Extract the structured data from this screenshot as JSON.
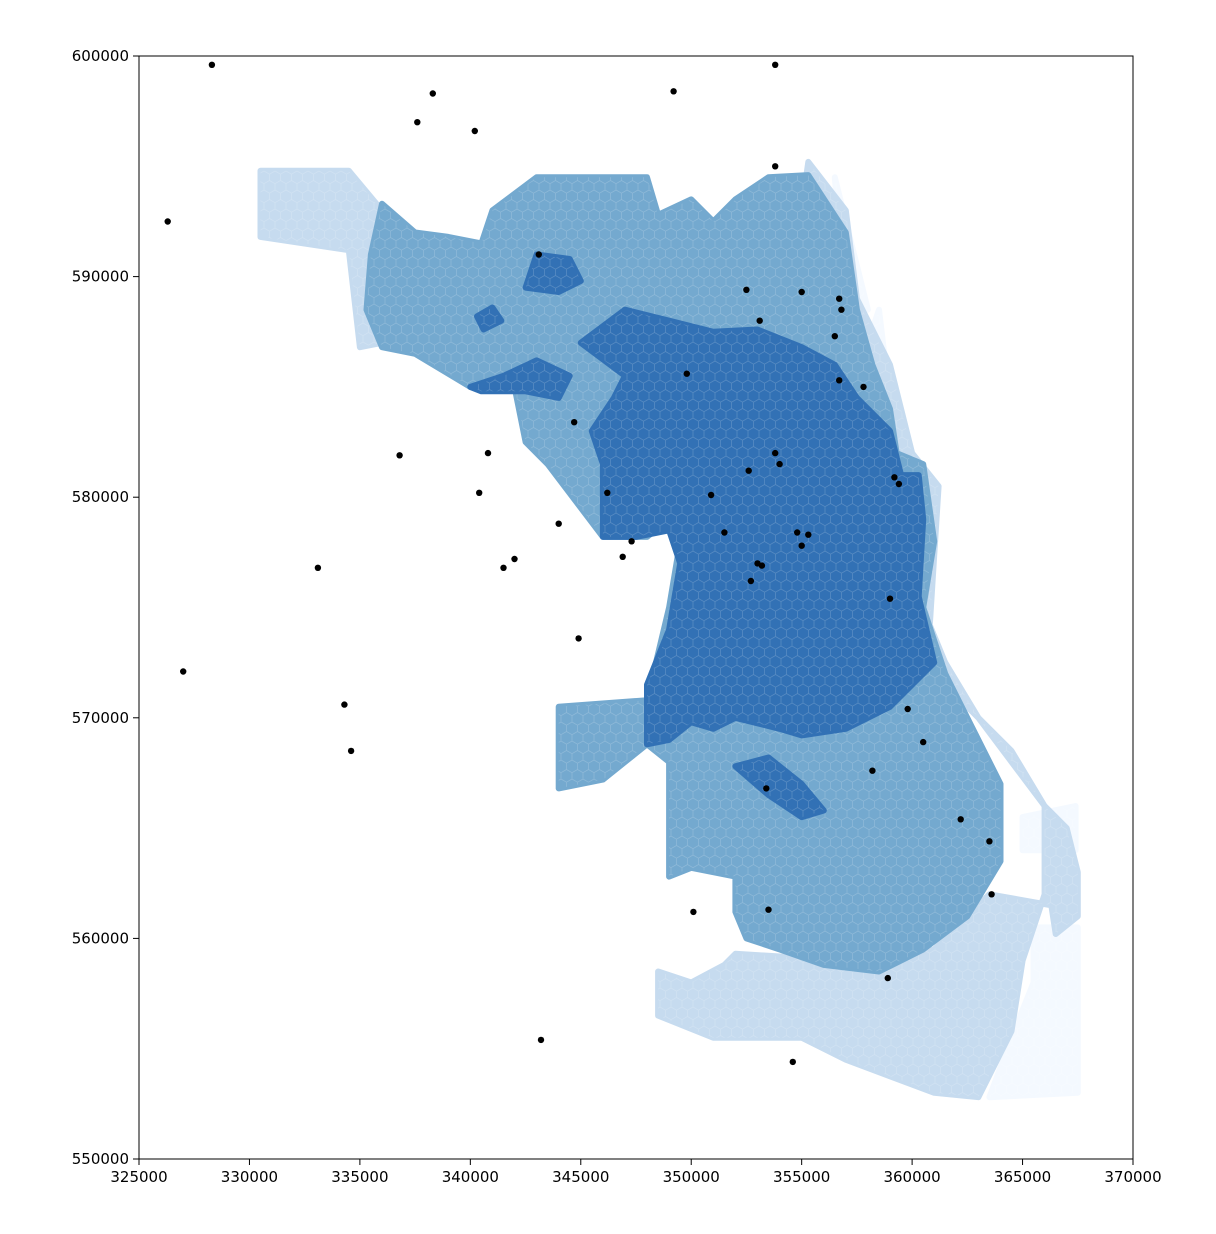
{
  "chart_data": {
    "type": "scatter",
    "title": "",
    "xlabel": "",
    "ylabel": "",
    "xlim": [
      325000,
      370000
    ],
    "ylim": [
      550000,
      600000
    ],
    "x_ticks": [
      "325000",
      "330000",
      "335000",
      "340000",
      "345000",
      "350000",
      "355000",
      "360000",
      "365000",
      "370000"
    ],
    "y_ticks": [
      "550000",
      "560000",
      "570000",
      "580000",
      "590000",
      "600000"
    ],
    "grid": false,
    "background_layer": {
      "kind": "hexbin choropleth",
      "colormap": "Blues",
      "class_colors": [
        "#f4f9ff",
        "#c6dbef",
        "#74a9cf",
        "#3271b5",
        "#0d2f6b"
      ],
      "regions": [
        {
          "class": 1,
          "points": [
            [
              358500,
              588500
            ],
            [
              358800,
              586000
            ],
            [
              359500,
              584000
            ],
            [
              360000,
              582000
            ],
            [
              361000,
              580000
            ],
            [
              360500,
              579500
            ],
            [
              359000,
              584000
            ],
            [
              358000,
              587000
            ]
          ]
        },
        {
          "class": 1,
          "points": [
            [
              365500,
              560500
            ],
            [
              367500,
              560500
            ],
            [
              367500,
              553000
            ],
            [
              363500,
              552800
            ],
            [
              364500,
              555500
            ],
            [
              365500,
              558000
            ]
          ]
        },
        {
          "class": 1,
          "points": [
            [
              365000,
              565500
            ],
            [
              367400,
              566000
            ],
            [
              367400,
              564000
            ],
            [
              365000,
              564000
            ]
          ]
        },
        {
          "class": 1,
          "points": [
            [
              356500,
              594500
            ],
            [
              358000,
              588500
            ],
            [
              357000,
              588500
            ]
          ]
        },
        {
          "class": 2,
          "points": [
            [
              330500,
              594800
            ],
            [
              334500,
              594800
            ],
            [
              336000,
              593000
            ],
            [
              336000,
              587000
            ],
            [
              335000,
              586800
            ],
            [
              334500,
              591200
            ],
            [
              330500,
              591800
            ]
          ]
        },
        {
          "class": 2,
          "points": [
            [
              355300,
              595200
            ],
            [
              357000,
              593000
            ],
            [
              357500,
              589000
            ],
            [
              359000,
              586000
            ],
            [
              360000,
              582000
            ],
            [
              361200,
              580500
            ],
            [
              360800,
              574200
            ],
            [
              361500,
              572500
            ],
            [
              363000,
              570000
            ],
            [
              364500,
              568000
            ],
            [
              366000,
              566000
            ],
            [
              367000,
              565000
            ],
            [
              367500,
              563000
            ],
            [
              367500,
              561000
            ],
            [
              366500,
              560200
            ],
            [
              366300,
              561500
            ],
            [
              363500,
              562000
            ],
            [
              361000,
              559500
            ],
            [
              357000,
              559000
            ],
            [
              352000,
              559300
            ],
            [
              351500,
              558800
            ],
            [
              350000,
              558000
            ],
            [
              348500,
              558500
            ],
            [
              348500,
              556500
            ],
            [
              351000,
              555500
            ],
            [
              353000,
              555500
            ],
            [
              355000,
              555500
            ],
            [
              357000,
              554500
            ],
            [
              361000,
              553000
            ],
            [
              363000,
              552800
            ],
            [
              364500,
              555800
            ],
            [
              365000,
              559000
            ],
            [
              366000,
              562000
            ],
            [
              366000,
              566000
            ],
            [
              364500,
              568500
            ],
            [
              362500,
              570500
            ],
            [
              361000,
              572500
            ],
            [
              360000,
              578000
            ],
            [
              359000,
              582500
            ],
            [
              358000,
              586000
            ],
            [
              357000,
              589500
            ],
            [
              356000,
              593000
            ],
            [
              355200,
              594500
            ]
          ]
        },
        {
          "class": 3,
          "points": [
            [
              336000,
              593300
            ],
            [
              337500,
              592000
            ],
            [
              339000,
              591800
            ],
            [
              340500,
              591500
            ],
            [
              341000,
              593000
            ],
            [
              343000,
              594500
            ],
            [
              348000,
              594500
            ],
            [
              348500,
              592800
            ],
            [
              350000,
              593500
            ],
            [
              351000,
              592500
            ],
            [
              352000,
              593500
            ],
            [
              353500,
              594500
            ],
            [
              355300,
              594600
            ],
            [
              357000,
              592000
            ],
            [
              357500,
              588500
            ],
            [
              358200,
              586000
            ],
            [
              359000,
              584000
            ],
            [
              359300,
              582000
            ],
            [
              360500,
              581500
            ],
            [
              361000,
              578000
            ],
            [
              360500,
              575000
            ],
            [
              361500,
              572000
            ],
            [
              362500,
              570000
            ],
            [
              364000,
              567000
            ],
            [
              364000,
              563500
            ],
            [
              362500,
              561000
            ],
            [
              360500,
              559500
            ],
            [
              358500,
              558500
            ],
            [
              356000,
              558800
            ],
            [
              354000,
              559500
            ],
            [
              352500,
              560000
            ],
            [
              352000,
              561200
            ],
            [
              352000,
              562800
            ],
            [
              350000,
              563200
            ],
            [
              349000,
              562800
            ],
            [
              349000,
              568000
            ],
            [
              348000,
              568800
            ],
            [
              346000,
              567200
            ],
            [
              344000,
              566800
            ],
            [
              344000,
              570500
            ],
            [
              348000,
              570800
            ],
            [
              349000,
              575000
            ],
            [
              349500,
              578000
            ],
            [
              349000,
              579000
            ],
            [
              348000,
              578200
            ],
            [
              346000,
              578200
            ],
            [
              343500,
              581500
            ],
            [
              342500,
              582500
            ],
            [
              342000,
              585000
            ],
            [
              340000,
              585000
            ],
            [
              337500,
              586500
            ],
            [
              336000,
              586800
            ],
            [
              335300,
              588500
            ],
            [
              335500,
              591000
            ]
          ]
        },
        {
          "class": 4,
          "points": [
            [
              345000,
              587000
            ],
            [
              347000,
              588500
            ],
            [
              349000,
              588000
            ],
            [
              351000,
              587500
            ],
            [
              353000,
              587600
            ],
            [
              355000,
              586800
            ],
            [
              356500,
              586000
            ],
            [
              357500,
              584500
            ],
            [
              359000,
              583000
            ],
            [
              359500,
              581000
            ],
            [
              360300,
              581000
            ],
            [
              360500,
              579000
            ],
            [
              360300,
              575500
            ],
            [
              361000,
              572500
            ],
            [
              359000,
              570500
            ],
            [
              357000,
              569500
            ],
            [
              355000,
              569200
            ],
            [
              354000,
              569500
            ],
            [
              352000,
              570000
            ],
            [
              351000,
              569500
            ],
            [
              350000,
              569800
            ],
            [
              349000,
              569000
            ],
            [
              348000,
              568800
            ],
            [
              348000,
              571500
            ],
            [
              349000,
              574000
            ],
            [
              349500,
              577000
            ],
            [
              349000,
              578500
            ],
            [
              347500,
              578200
            ],
            [
              346000,
              578200
            ],
            [
              346000,
              581500
            ],
            [
              345500,
              583000
            ],
            [
              346500,
              584500
            ],
            [
              347000,
              585500
            ]
          ]
        },
        {
          "class": 4,
          "points": [
            [
              343000,
              591000
            ],
            [
              344500,
              590800
            ],
            [
              345000,
              589800
            ],
            [
              344000,
              589300
            ],
            [
              342500,
              589500
            ]
          ]
        },
        {
          "class": 4,
          "points": [
            [
              340000,
              585000
            ],
            [
              341500,
              585500
            ],
            [
              343000,
              586200
            ],
            [
              344500,
              585500
            ],
            [
              344000,
              584500
            ],
            [
              342500,
              584800
            ],
            [
              340500,
              584800
            ]
          ]
        },
        {
          "class": 4,
          "points": [
            [
              352000,
              567800
            ],
            [
              353500,
              568200
            ],
            [
              355000,
              567000
            ],
            [
              356000,
              565800
            ],
            [
              355000,
              565500
            ],
            [
              353500,
              566500
            ]
          ]
        },
        {
          "class": 4,
          "points": [
            [
              340300,
              588200
            ],
            [
              341000,
              588600
            ],
            [
              341400,
              588000
            ],
            [
              340600,
              587600
            ]
          ]
        }
      ]
    },
    "series": [
      {
        "marker": "point",
        "color": "#000000",
        "points": [
          [
            326300,
            592500
          ],
          [
            327000,
            572100
          ],
          [
            328300,
            599600
          ],
          [
            333100,
            576800
          ],
          [
            334300,
            570600
          ],
          [
            334600,
            568500
          ],
          [
            336800,
            581900
          ],
          [
            337600,
            597000
          ],
          [
            338300,
            598300
          ],
          [
            340200,
            596600
          ],
          [
            340400,
            580200
          ],
          [
            340800,
            582000
          ],
          [
            341500,
            576800
          ],
          [
            342000,
            577200
          ],
          [
            343100,
            591000
          ],
          [
            343200,
            555400
          ],
          [
            344000,
            578800
          ],
          [
            344700,
            583400
          ],
          [
            344900,
            573600
          ],
          [
            346200,
            580200
          ],
          [
            346900,
            577300
          ],
          [
            347300,
            578000
          ],
          [
            349200,
            598400
          ],
          [
            349800,
            585600
          ],
          [
            350100,
            561200
          ],
          [
            350900,
            580100
          ],
          [
            351500,
            578400
          ],
          [
            352500,
            589400
          ],
          [
            352600,
            581200
          ],
          [
            352700,
            576200
          ],
          [
            353000,
            577000
          ],
          [
            353100,
            588000
          ],
          [
            353200,
            576900
          ],
          [
            353400,
            566800
          ],
          [
            353500,
            561300
          ],
          [
            353800,
            595000
          ],
          [
            353800,
            582000
          ],
          [
            353800,
            599600
          ],
          [
            354000,
            581500
          ],
          [
            354600,
            554400
          ],
          [
            354800,
            578400
          ],
          [
            355000,
            577800
          ],
          [
            355000,
            589300
          ],
          [
            355300,
            578300
          ],
          [
            356500,
            587300
          ],
          [
            356700,
            589000
          ],
          [
            356800,
            588500
          ],
          [
            356700,
            585300
          ],
          [
            357800,
            585000
          ],
          [
            358200,
            567600
          ],
          [
            358900,
            558200
          ],
          [
            359000,
            575400
          ],
          [
            359200,
            580900
          ],
          [
            359400,
            580600
          ],
          [
            359800,
            570400
          ],
          [
            360500,
            568900
          ],
          [
            362200,
            565400
          ],
          [
            363500,
            564400
          ],
          [
            363600,
            562000
          ]
        ]
      }
    ]
  }
}
